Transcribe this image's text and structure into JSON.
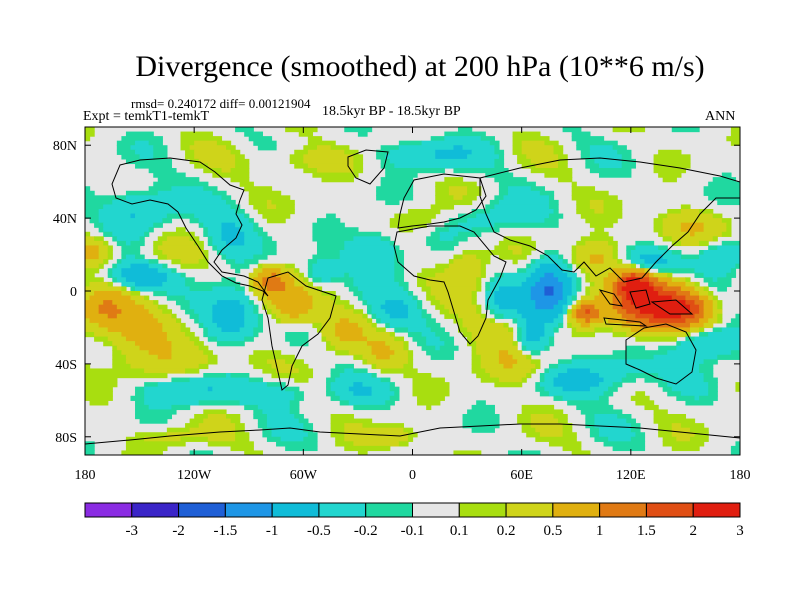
{
  "chart_data": {
    "type": "heatmap",
    "title": "Divergence (smoothed) at 200 hPa (10**6 m/s)",
    "stats_text": "rmsd= 0.240172 diff= 0.00121904",
    "experiment": "Expt = temkT1-temkT",
    "period": "18.5kyr BP - 18.5kyr BP",
    "season": "ANN",
    "lon_range": [
      -180,
      180
    ],
    "lat_range": [
      -90,
      90
    ],
    "x_ticks": [
      {
        "value": -180,
        "label": "180"
      },
      {
        "value": -120,
        "label": "120W"
      },
      {
        "value": -60,
        "label": "60W"
      },
      {
        "value": 0,
        "label": "0"
      },
      {
        "value": 60,
        "label": "60E"
      },
      {
        "value": 120,
        "label": "120E"
      },
      {
        "value": 180,
        "label": "180"
      }
    ],
    "y_ticks": [
      {
        "value": 80,
        "label": "80N"
      },
      {
        "value": 40,
        "label": "40N"
      },
      {
        "value": 0,
        "label": "0"
      },
      {
        "value": -40,
        "label": "40S"
      },
      {
        "value": -80,
        "label": "80S"
      }
    ],
    "contour_levels": [
      -3,
      -2,
      -1.5,
      -1,
      -0.5,
      -0.2,
      -0.1,
      0.1,
      0.2,
      0.5,
      1,
      1.5,
      2,
      3
    ],
    "colorbar_labels": [
      "-3",
      "-2",
      "-1.5",
      "-1",
      "-0.5",
      "-0.2",
      "-0.1",
      "0.1",
      "0.2",
      "0.5",
      "1",
      "1.5",
      "2",
      "3"
    ],
    "colorbar_colors": [
      "#8a2be2",
      "#3b25c8",
      "#1f5fd6",
      "#1e96e6",
      "#10bcd8",
      "#22d6cf",
      "#20d8a0",
      "#e6e6e6",
      "#a8de10",
      "#cfd41a",
      "#e0b010",
      "#e07a14",
      "#e04e14",
      "#e01e10"
    ]
  }
}
